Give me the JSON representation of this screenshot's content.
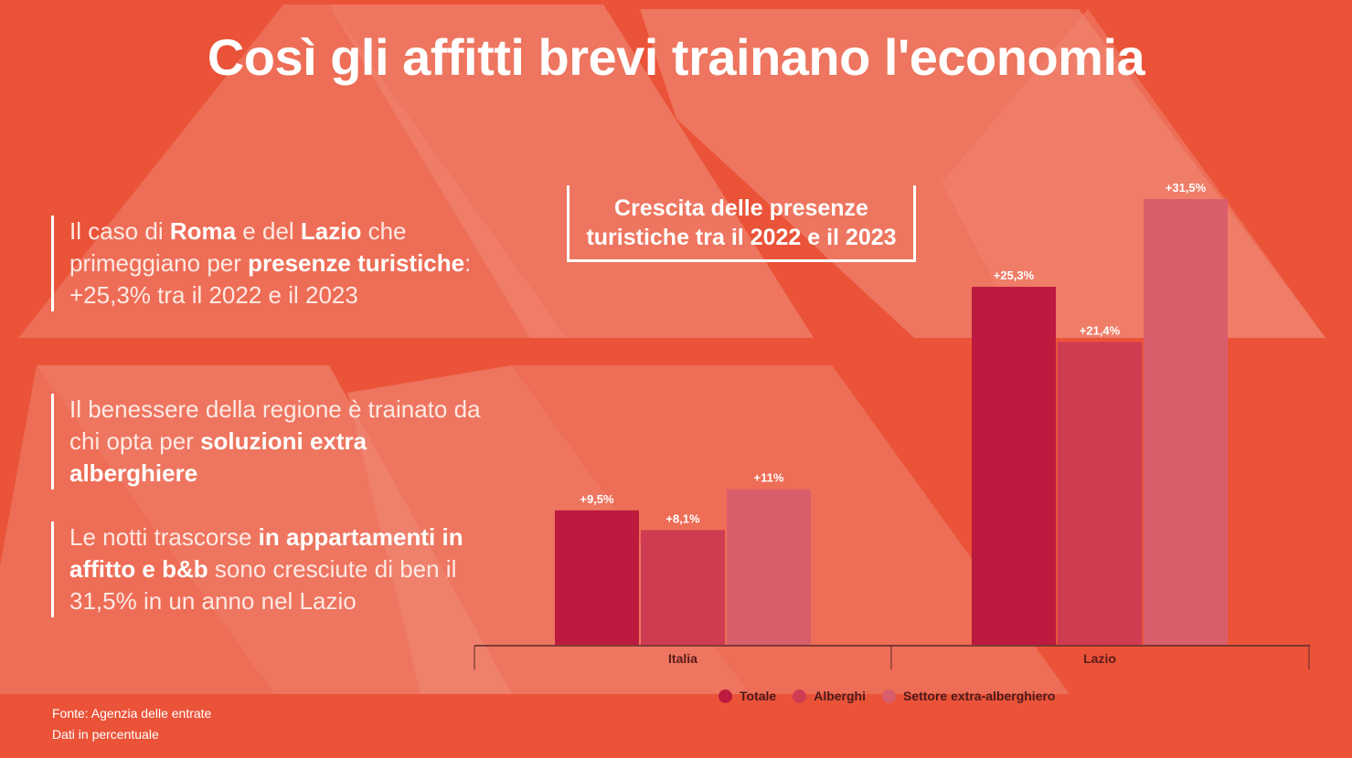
{
  "title": "Così gli affitti brevi trainano l'economia",
  "bullets": [
    {
      "parts": [
        {
          "t": "Il caso di ",
          "b": false
        },
        {
          "t": "Roma",
          "b": true
        },
        {
          "t": " e del ",
          "b": false
        },
        {
          "t": "Lazio",
          "b": true
        },
        {
          "t": " che primeggiano per ",
          "b": false
        },
        {
          "t": "presenze turistiche",
          "b": true
        },
        {
          "t": ": +25,3% tra il 2022 e il 2023",
          "b": false
        }
      ]
    },
    {
      "parts": [
        {
          "t": "Il benessere della regione è trainato da chi opta per ",
          "b": false
        },
        {
          "t": "soluzioni extra alberghiere",
          "b": true
        }
      ]
    },
    {
      "parts": [
        {
          "t": "Le notti trascorse ",
          "b": false
        },
        {
          "t": "in appartamenti in affitto e b&b",
          "b": true
        },
        {
          "t": " sono cresciute di ben il 31,5% in un anno nel Lazio",
          "b": false
        }
      ]
    }
  ],
  "source": {
    "line1": "Fonte: Agenzia delle entrate",
    "line2": "Dati in percentuale"
  },
  "colors": {
    "background": "#ea5338",
    "shape": "#f08470",
    "totale": "#bc1a3e",
    "alberghi": "#cf3c52",
    "extra": "#d95e6c",
    "axis": "#5a2a2a",
    "label_dark": "#5a1a1a"
  },
  "chart_data": {
    "type": "bar",
    "title": "Crescita delle presenze turistiche tra il 2022 e il 2023",
    "categories": [
      "Italia",
      "Lazio"
    ],
    "series": [
      {
        "name": "Totale",
        "values": [
          9.5,
          25.3
        ],
        "labels": [
          "+9,5%",
          "+25,3%"
        ],
        "color": "#bc1a3e"
      },
      {
        "name": "Alberghi",
        "values": [
          8.1,
          21.4
        ],
        "labels": [
          "+8,1%",
          "+21,4%"
        ],
        "color": "#cf3c52"
      },
      {
        "name": "Settore extra-alberghiero",
        "values": [
          11,
          31.5
        ],
        "labels": [
          "+11%",
          "+31,5%"
        ],
        "color": "#d95e6c"
      }
    ],
    "ylim": [
      0,
      35
    ],
    "grid": false,
    "legend_position": "bottom"
  }
}
